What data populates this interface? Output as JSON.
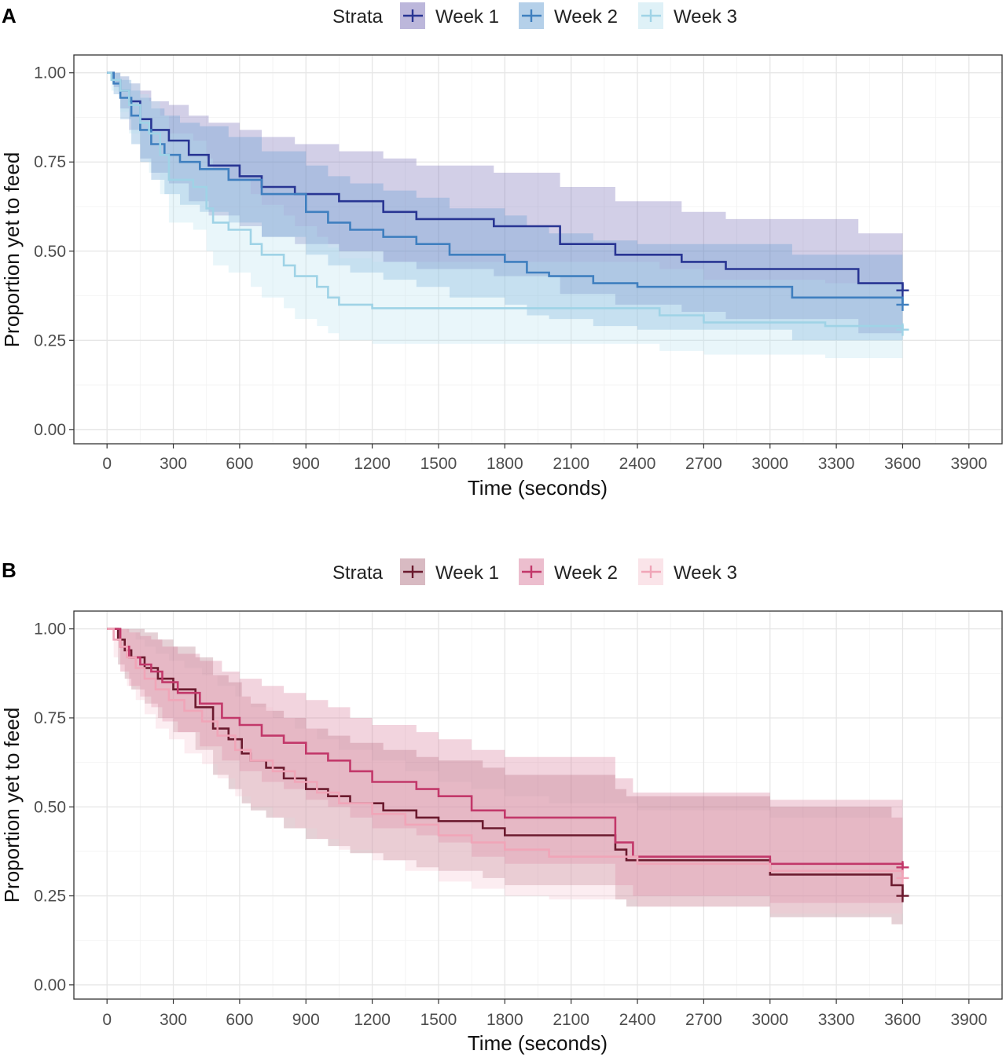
{
  "chart_data": [
    {
      "type": "line",
      "subtype": "kaplan-meier",
      "panel_label": "A",
      "legend_title": "Strata",
      "xlabel": "Time (seconds)",
      "ylabel": "Proportion yet to feed",
      "xlim": [
        -150,
        4050
      ],
      "ylim": [
        -0.04,
        1.05
      ],
      "x_ticks": [
        0,
        300,
        600,
        900,
        1200,
        1500,
        1800,
        2100,
        2400,
        2700,
        3000,
        3300,
        3600,
        3900
      ],
      "y_ticks": [
        0.0,
        0.25,
        0.5,
        0.75,
        1.0
      ],
      "y_tick_labels": [
        "0.00",
        "0.25",
        "0.50",
        "0.75",
        "1.00"
      ],
      "series": [
        {
          "name": "Week 1",
          "color": "#283593",
          "band_color": "#6b5fb0",
          "x": [
            0,
            30,
            60,
            100,
            150,
            200,
            280,
            370,
            460,
            600,
            700,
            850,
            1050,
            1250,
            1400,
            1750,
            2050,
            2300,
            2600,
            2800,
            3400,
            3600
          ],
          "y": [
            1.0,
            0.98,
            0.95,
            0.92,
            0.87,
            0.84,
            0.81,
            0.77,
            0.74,
            0.71,
            0.68,
            0.66,
            0.64,
            0.61,
            0.59,
            0.57,
            0.52,
            0.49,
            0.47,
            0.45,
            0.41,
            0.39
          ],
          "lower": [
            1.0,
            0.96,
            0.9,
            0.84,
            0.76,
            0.72,
            0.69,
            0.64,
            0.6,
            0.57,
            0.54,
            0.52,
            0.5,
            0.47,
            0.45,
            0.43,
            0.38,
            0.35,
            0.33,
            0.31,
            0.27,
            0.25
          ],
          "upper": [
            1.0,
            1.0,
            0.99,
            0.97,
            0.95,
            0.92,
            0.91,
            0.88,
            0.86,
            0.84,
            0.82,
            0.8,
            0.78,
            0.76,
            0.74,
            0.72,
            0.68,
            0.64,
            0.61,
            0.59,
            0.55,
            0.54
          ],
          "censor_x": 3600,
          "censor_y": 0.39
        },
        {
          "name": "Week 2",
          "color": "#3f7fbf",
          "band_color": "#5b97cf",
          "x": [
            0,
            30,
            60,
            110,
            150,
            200,
            260,
            330,
            420,
            550,
            700,
            900,
            1000,
            1100,
            1250,
            1400,
            1550,
            1800,
            1900,
            2000,
            2200,
            2400,
            3100,
            3600
          ],
          "y": [
            1.0,
            0.97,
            0.93,
            0.88,
            0.84,
            0.8,
            0.77,
            0.75,
            0.73,
            0.7,
            0.66,
            0.61,
            0.58,
            0.56,
            0.54,
            0.52,
            0.49,
            0.47,
            0.44,
            0.43,
            0.41,
            0.4,
            0.37,
            0.35
          ],
          "lower": [
            1.0,
            0.94,
            0.87,
            0.8,
            0.75,
            0.7,
            0.66,
            0.63,
            0.61,
            0.58,
            0.54,
            0.49,
            0.46,
            0.44,
            0.42,
            0.4,
            0.37,
            0.35,
            0.32,
            0.31,
            0.29,
            0.28,
            0.25,
            0.23
          ],
          "upper": [
            1.0,
            1.0,
            0.98,
            0.95,
            0.93,
            0.9,
            0.88,
            0.86,
            0.85,
            0.82,
            0.78,
            0.74,
            0.71,
            0.69,
            0.67,
            0.65,
            0.62,
            0.6,
            0.57,
            0.55,
            0.53,
            0.52,
            0.49,
            0.47
          ],
          "censor_x": 3600,
          "censor_y": 0.35
        },
        {
          "name": "Week 3",
          "color": "#9fd3e6",
          "band_color": "#b7e0ee",
          "x": [
            0,
            20,
            60,
            100,
            150,
            190,
            240,
            280,
            390,
            450,
            480,
            550,
            650,
            700,
            800,
            850,
            950,
            1000,
            1050,
            1200,
            2500,
            2700,
            3250,
            3600
          ],
          "y": [
            1.0,
            0.98,
            0.95,
            0.91,
            0.86,
            0.83,
            0.77,
            0.7,
            0.68,
            0.62,
            0.58,
            0.56,
            0.52,
            0.49,
            0.46,
            0.43,
            0.4,
            0.37,
            0.35,
            0.34,
            0.32,
            0.3,
            0.29,
            0.28
          ],
          "lower": [
            1.0,
            0.95,
            0.89,
            0.83,
            0.76,
            0.72,
            0.66,
            0.58,
            0.56,
            0.5,
            0.46,
            0.44,
            0.4,
            0.37,
            0.34,
            0.31,
            0.29,
            0.27,
            0.25,
            0.24,
            0.22,
            0.21,
            0.2,
            0.19
          ],
          "upper": [
            1.0,
            1.0,
            0.99,
            0.97,
            0.94,
            0.92,
            0.88,
            0.83,
            0.81,
            0.76,
            0.73,
            0.7,
            0.66,
            0.63,
            0.6,
            0.57,
            0.54,
            0.51,
            0.48,
            0.47,
            0.45,
            0.42,
            0.41,
            0.4
          ],
          "censor_x": 3600,
          "censor_y": 0.28
        }
      ]
    },
    {
      "type": "line",
      "subtype": "kaplan-meier",
      "panel_label": "B",
      "legend_title": "Strata",
      "xlabel": "Time (seconds)",
      "ylabel": "Proportion yet to feed",
      "xlim": [
        -150,
        4050
      ],
      "ylim": [
        -0.04,
        1.05
      ],
      "x_ticks": [
        0,
        300,
        600,
        900,
        1200,
        1500,
        1800,
        2100,
        2400,
        2700,
        3000,
        3300,
        3600,
        3900
      ],
      "y_ticks": [
        0.0,
        0.25,
        0.5,
        0.75,
        1.0
      ],
      "y_tick_labels": [
        "0.00",
        "0.25",
        "0.50",
        "0.75",
        "1.00"
      ],
      "series": [
        {
          "name": "Week 1",
          "color": "#6b1a2e",
          "band_color": "#a86778",
          "x": [
            0,
            40,
            50,
            80,
            110,
            170,
            230,
            300,
            400,
            480,
            550,
            610,
            650,
            720,
            800,
            900,
            1000,
            1100,
            1250,
            1400,
            1500,
            1700,
            1800,
            2300,
            2350,
            3000,
            3550,
            3600
          ],
          "y": [
            1.0,
            1.0,
            0.97,
            0.94,
            0.92,
            0.89,
            0.86,
            0.83,
            0.78,
            0.72,
            0.69,
            0.65,
            0.63,
            0.61,
            0.58,
            0.55,
            0.53,
            0.51,
            0.49,
            0.47,
            0.46,
            0.44,
            0.42,
            0.38,
            0.35,
            0.31,
            0.28,
            0.25
          ],
          "lower": [
            1.0,
            1.0,
            0.9,
            0.86,
            0.83,
            0.79,
            0.75,
            0.71,
            0.66,
            0.59,
            0.55,
            0.51,
            0.49,
            0.47,
            0.44,
            0.41,
            0.39,
            0.37,
            0.35,
            0.33,
            0.32,
            0.3,
            0.28,
            0.24,
            0.22,
            0.19,
            0.17,
            0.15
          ],
          "upper": [
            1.0,
            1.0,
            1.0,
            1.0,
            1.0,
            0.99,
            0.97,
            0.95,
            0.92,
            0.87,
            0.85,
            0.81,
            0.79,
            0.77,
            0.75,
            0.72,
            0.7,
            0.68,
            0.66,
            0.64,
            0.63,
            0.61,
            0.59,
            0.55,
            0.53,
            0.5,
            0.47,
            0.44
          ],
          "censor_x": 3600,
          "censor_y": 0.25
        },
        {
          "name": "Week 2",
          "color": "#c2386a",
          "band_color": "#d46f92",
          "x": [
            0,
            40,
            60,
            100,
            150,
            200,
            250,
            320,
            420,
            520,
            600,
            700,
            800,
            900,
            1000,
            1100,
            1200,
            1400,
            1500,
            1650,
            1800,
            2300,
            2380,
            3000,
            3600
          ],
          "y": [
            1.0,
            1.0,
            0.95,
            0.92,
            0.9,
            0.88,
            0.85,
            0.82,
            0.79,
            0.75,
            0.73,
            0.7,
            0.68,
            0.65,
            0.63,
            0.6,
            0.57,
            0.55,
            0.53,
            0.49,
            0.47,
            0.4,
            0.36,
            0.34,
            0.33
          ],
          "lower": [
            1.0,
            1.0,
            0.88,
            0.84,
            0.81,
            0.78,
            0.74,
            0.71,
            0.67,
            0.63,
            0.6,
            0.57,
            0.55,
            0.52,
            0.5,
            0.47,
            0.44,
            0.42,
            0.4,
            0.36,
            0.34,
            0.28,
            0.25,
            0.23,
            0.22
          ],
          "upper": [
            1.0,
            1.0,
            1.0,
            0.99,
            0.98,
            0.97,
            0.95,
            0.93,
            0.91,
            0.88,
            0.86,
            0.84,
            0.82,
            0.8,
            0.78,
            0.75,
            0.73,
            0.71,
            0.69,
            0.66,
            0.64,
            0.58,
            0.54,
            0.52,
            0.5
          ],
          "censor_x": 3600,
          "censor_y": 0.33
        },
        {
          "name": "Week 3",
          "color": "#f0a5b8",
          "band_color": "#f5c3cf",
          "x": [
            0,
            30,
            60,
            90,
            130,
            170,
            220,
            280,
            350,
            430,
            500,
            580,
            650,
            750,
            850,
            950,
            1050,
            1200,
            1350,
            1500,
            1650,
            1800,
            2000,
            2400,
            3000,
            3600
          ],
          "y": [
            1.0,
            0.97,
            0.95,
            0.92,
            0.89,
            0.86,
            0.83,
            0.8,
            0.77,
            0.74,
            0.7,
            0.66,
            0.63,
            0.6,
            0.57,
            0.54,
            0.51,
            0.48,
            0.45,
            0.42,
            0.4,
            0.38,
            0.36,
            0.34,
            0.32,
            0.3
          ],
          "lower": [
            1.0,
            0.92,
            0.88,
            0.84,
            0.8,
            0.76,
            0.72,
            0.69,
            0.65,
            0.62,
            0.58,
            0.53,
            0.5,
            0.47,
            0.44,
            0.41,
            0.38,
            0.35,
            0.32,
            0.29,
            0.27,
            0.25,
            0.24,
            0.22,
            0.2,
            0.19
          ],
          "upper": [
            1.0,
            1.0,
            1.0,
            0.99,
            0.97,
            0.95,
            0.93,
            0.91,
            0.89,
            0.87,
            0.84,
            0.81,
            0.78,
            0.75,
            0.72,
            0.69,
            0.66,
            0.63,
            0.6,
            0.57,
            0.55,
            0.53,
            0.51,
            0.49,
            0.47,
            0.45
          ],
          "censor_x": 3600,
          "censor_y": 0.3
        }
      ]
    }
  ]
}
